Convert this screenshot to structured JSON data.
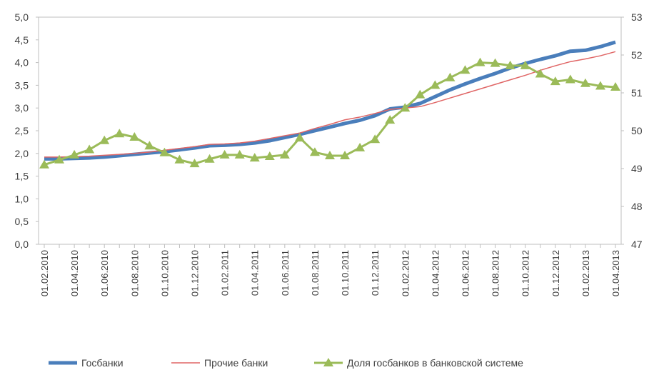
{
  "chart_data": {
    "type": "line",
    "categories": [
      "01.02.2010",
      null,
      "01.04.2010",
      null,
      "01.06.2010",
      null,
      "01.08.2010",
      null,
      "01.10.2010",
      null,
      "01.12.2010",
      null,
      "01.02.2011",
      null,
      "01.04.2011",
      null,
      "01.06.2011",
      null,
      "01.08.2011",
      null,
      "01.10.2011",
      null,
      "01.12.2011",
      null,
      "01.02.2012",
      null,
      "01.04.2012",
      null,
      "01.06.2012",
      null,
      "01.08.2012",
      null,
      "01.10.2012",
      null,
      "01.12.2012",
      null,
      "01.02.2013",
      null,
      "01.04.2013"
    ],
    "series": [
      {
        "name": "Госбанки",
        "color": "#4a7ebb",
        "values": [
          1.88,
          1.88,
          1.89,
          1.9,
          1.92,
          1.95,
          1.98,
          2.01,
          2.04,
          2.08,
          2.12,
          2.17,
          2.18,
          2.2,
          2.23,
          2.28,
          2.35,
          2.42,
          2.5,
          2.58,
          2.66,
          2.73,
          2.83,
          2.98,
          3.02,
          3.1,
          3.25,
          3.4,
          3.53,
          3.65,
          3.76,
          3.88,
          3.98,
          4.07,
          4.15,
          4.25,
          4.27,
          4.35,
          4.45
        ]
      },
      {
        "name": "Прочие банки",
        "color": "#e06666",
        "values": [
          1.92,
          1.92,
          1.93,
          1.94,
          1.96,
          1.98,
          2.0,
          2.03,
          2.07,
          2.11,
          2.15,
          2.2,
          2.21,
          2.23,
          2.27,
          2.33,
          2.39,
          2.45,
          2.55,
          2.64,
          2.74,
          2.8,
          2.88,
          2.97,
          3.0,
          3.03,
          3.12,
          3.22,
          3.32,
          3.42,
          3.52,
          3.62,
          3.72,
          3.83,
          3.93,
          4.02,
          4.08,
          4.15,
          4.24
        ]
      },
      {
        "name": "Доля госбанков в банковской системе",
        "color": "#9bbb59",
        "axis": "y2",
        "marker": "triangle",
        "values": [
          49.1,
          49.23,
          49.36,
          49.5,
          49.74,
          49.92,
          49.83,
          49.6,
          49.42,
          49.23,
          49.13,
          49.25,
          49.36,
          49.36,
          49.28,
          49.32,
          49.36,
          49.81,
          49.43,
          49.34,
          49.34,
          49.55,
          49.77,
          50.28,
          50.6,
          50.95,
          51.2,
          51.4,
          51.6,
          51.8,
          51.78,
          51.72,
          51.72,
          51.5,
          51.3,
          51.35,
          51.25,
          51.18,
          51.15
        ]
      }
    ],
    "ylim": [
      0,
      5
    ],
    "yticks": [
      {
        "value": 0,
        "label": "0,0"
      },
      {
        "value": 0.5,
        "label": "0,5"
      },
      {
        "value": 1,
        "label": "1,0"
      },
      {
        "value": 1.5,
        "label": "1,5"
      },
      {
        "value": 2,
        "label": "2,0"
      },
      {
        "value": 2.5,
        "label": "2,5"
      },
      {
        "value": 3,
        "label": "3,0"
      },
      {
        "value": 3.5,
        "label": "3,5"
      },
      {
        "value": 4,
        "label": "4,0"
      },
      {
        "value": 4.5,
        "label": "4,5"
      },
      {
        "value": 5,
        "label": "5,0"
      }
    ],
    "y2lim": [
      47,
      53
    ],
    "y2ticks": [
      47,
      48,
      49,
      50,
      51,
      52,
      53
    ],
    "legend": "bottom"
  }
}
